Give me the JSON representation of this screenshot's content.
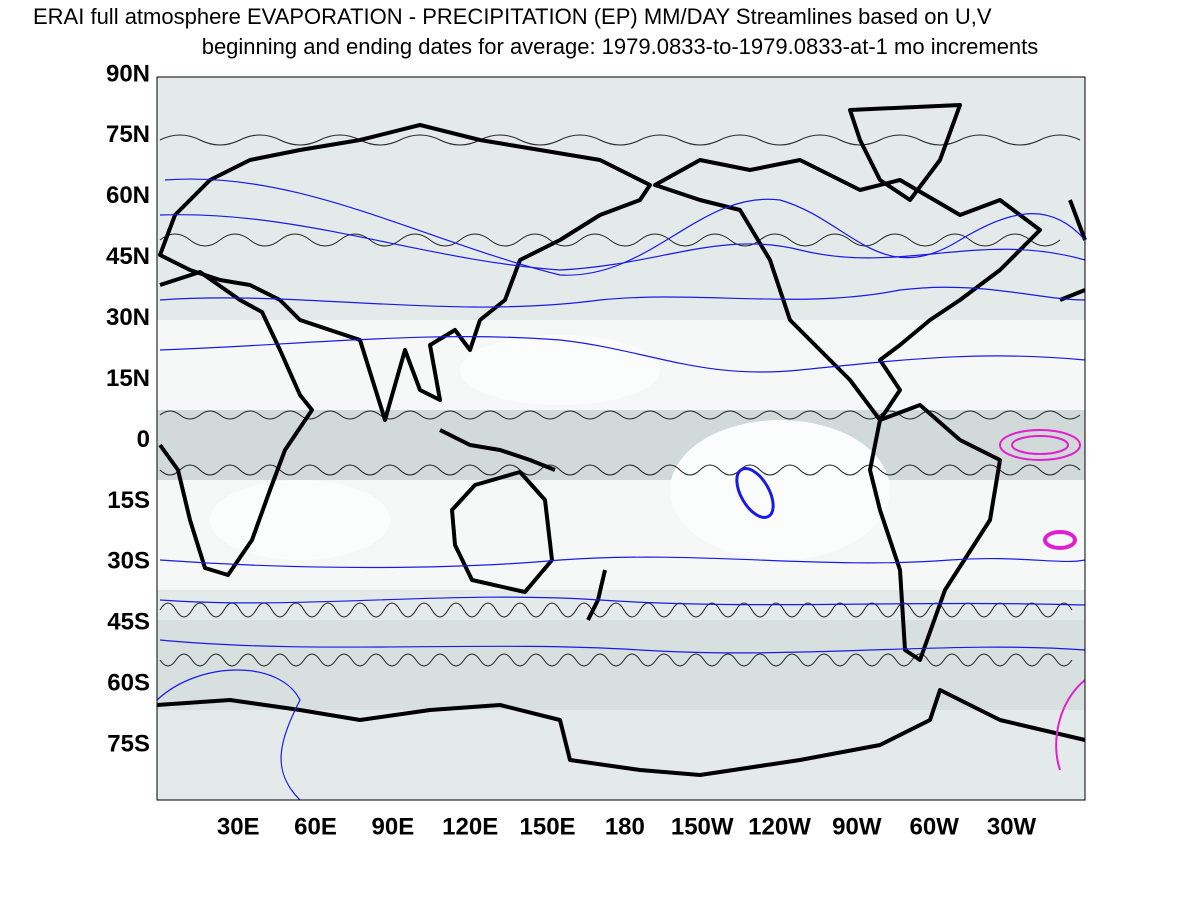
{
  "map": {
    "title": "ERAI full atmosphere   EVAPORATION - PRECIPITATION (EP)   MM/DAY   Streamlines based on U,V",
    "subtitle": "beginning and ending dates for average:  1979.0833-to-1979.0833-at-1 mo increments",
    "xlim": [
      -1.5,
      358.5
    ],
    "ylim": [
      -88.5,
      89.5
    ],
    "xticks": [
      {
        "value": 30,
        "label": "30E"
      },
      {
        "value": 60,
        "label": "60E"
      },
      {
        "value": 90,
        "label": "90E"
      },
      {
        "value": 120,
        "label": "120E"
      },
      {
        "value": 150,
        "label": "150E"
      },
      180,
      {
        "value": 210,
        "label": "150W"
      },
      {
        "value": 240,
        "label": "120W"
      },
      {
        "value": 270,
        "label": "90W"
      },
      {
        "value": 300,
        "label": "60W"
      },
      {
        "value": 330,
        "label": "30W"
      }
    ],
    "yticks": [
      {
        "value": 90,
        "label": "90N"
      },
      {
        "value": 75,
        "label": "75N"
      },
      {
        "value": 60,
        "label": "60N"
      },
      {
        "value": 45,
        "label": "45N"
      },
      {
        "value": 30,
        "label": "30N"
      },
      {
        "value": 15,
        "label": "15N"
      },
      0,
      {
        "value": -15,
        "label": "15S"
      },
      {
        "value": -30,
        "label": "30S"
      },
      {
        "value": -45,
        "label": "45S"
      },
      {
        "value": -60,
        "label": "60S"
      },
      {
        "value": -75,
        "label": "75S"
      }
    ]
  }
}
